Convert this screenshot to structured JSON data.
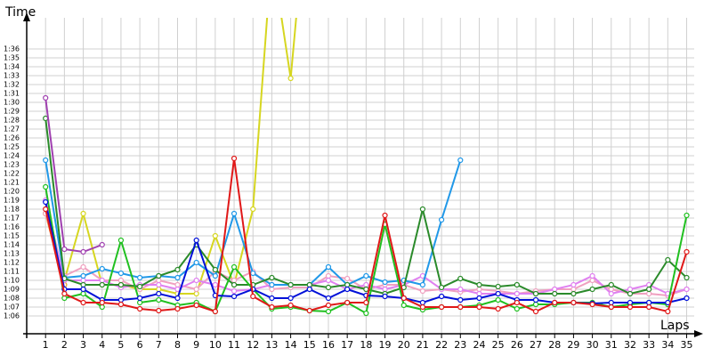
{
  "chart_data": {
    "type": "line",
    "ylabel": "Time",
    "xlabel": "Laps",
    "x": [
      1,
      2,
      3,
      4,
      5,
      6,
      7,
      8,
      9,
      10,
      11,
      12,
      13,
      14,
      15,
      16,
      17,
      18,
      19,
      20,
      21,
      22,
      23,
      24,
      25,
      26,
      27,
      28,
      29,
      30,
      31,
      32,
      33,
      34,
      35
    ],
    "xlim": [
      0,
      35.4
    ],
    "ylim": [
      64,
      99.5
    ],
    "yticks": [
      {
        "value": 66,
        "label": "1:06"
      },
      {
        "value": 67,
        "label": "1:07"
      },
      {
        "value": 68,
        "label": "1:08"
      },
      {
        "value": 69,
        "label": "1:09"
      },
      {
        "value": 70,
        "label": "1:10"
      },
      {
        "value": 71,
        "label": "1:11"
      },
      {
        "value": 72,
        "label": "1:12"
      },
      {
        "value": 73,
        "label": "1:13"
      },
      {
        "value": 74,
        "label": "1:14"
      },
      {
        "value": 75,
        "label": "1:15"
      },
      {
        "value": 76,
        "label": "1:16"
      },
      {
        "value": 77,
        "label": "1:17"
      },
      {
        "value": 78,
        "label": "1:18"
      },
      {
        "value": 79,
        "label": "1:19"
      },
      {
        "value": 80,
        "label": "1:20"
      },
      {
        "value": 81,
        "label": "1:21"
      },
      {
        "value": 82,
        "label": "1:22"
      },
      {
        "value": 83,
        "label": "1:23"
      },
      {
        "value": 84,
        "label": "1:24"
      },
      {
        "value": 85,
        "label": "1:25"
      },
      {
        "value": 86,
        "label": "1:26"
      },
      {
        "value": 87,
        "label": "1:27"
      },
      {
        "value": 88,
        "label": "1:28"
      },
      {
        "value": 89,
        "label": "1:29"
      },
      {
        "value": 90,
        "label": "1:30"
      },
      {
        "value": 91,
        "label": "1:31"
      },
      {
        "value": 92,
        "label": "1:32"
      },
      {
        "value": 93,
        "label": "1:33"
      },
      {
        "value": 94,
        "label": "1:34"
      },
      {
        "value": 95,
        "label": "1:35"
      },
      {
        "value": 96,
        "label": "1:36"
      }
    ],
    "grid": true,
    "series": [
      {
        "color": "#d6d620",
        "values": [
          77.5,
          70,
          77.5,
          69.5,
          69.5,
          69,
          69,
          68.5,
          68.5,
          75,
          69.5,
          78,
          106.7,
          92.7,
          116,
          null,
          null,
          null,
          null,
          null,
          null,
          null,
          null,
          null,
          null,
          null,
          null,
          null,
          null,
          null,
          null,
          null,
          null,
          null,
          null
        ]
      },
      {
        "color": "#f0a020",
        "values": [
          77.5,
          69.5,
          null,
          null,
          null,
          null,
          null,
          null,
          null,
          null,
          null,
          null,
          null,
          null,
          null,
          null,
          null,
          null,
          null,
          null,
          null,
          null,
          null,
          null,
          null,
          null,
          null,
          null,
          null,
          null,
          null,
          null,
          null,
          null,
          null
        ]
      },
      {
        "color": "#f0a0c0",
        "values": [
          77.5,
          70.5,
          71.5,
          70,
          70,
          69,
          70,
          69.5,
          69,
          71,
          70,
          71,
          69,
          69.2,
          69.2,
          70.5,
          70.2,
          69,
          69.5,
          69.5,
          68.8,
          69,
          68.7,
          69,
          68.8,
          68.5,
          68.8,
          69,
          69,
          70,
          69,
          68.5,
          68.5,
          68.3,
          69
        ]
      },
      {
        "color": "#e080f0",
        "values": [
          79,
          70,
          70,
          70,
          69.2,
          69.5,
          69.5,
          69,
          70,
          69.5,
          68.8,
          69,
          69.5,
          69.5,
          69.5,
          70,
          69,
          69.5,
          69,
          69.5,
          70.5,
          69,
          69,
          68.5,
          68.5,
          68.5,
          68.5,
          69,
          69.5,
          70.5,
          68.5,
          69,
          69.5,
          68.5,
          69
        ]
      },
      {
        "color": "#2098e8",
        "values": [
          83.5,
          70.3,
          70.5,
          71.3,
          70.8,
          70.3,
          70.5,
          70.3,
          72,
          70.5,
          77.5,
          70.8,
          69.5,
          69.5,
          69.5,
          71.5,
          69.5,
          70.5,
          69.8,
          70,
          69.5,
          76.8,
          83.5,
          null,
          null,
          null,
          null,
          null,
          null,
          null,
          null,
          null,
          null,
          null,
          null
        ]
      },
      {
        "color": "#2a8a2a",
        "values": [
          88.2,
          70.2,
          69.5,
          69.5,
          69.5,
          69.3,
          70.5,
          71.2,
          74,
          71.2,
          69.5,
          69.5,
          70.3,
          69.5,
          69.5,
          69.2,
          69.5,
          69,
          68.5,
          69.2,
          78,
          69.2,
          70.2,
          69.5,
          69.3,
          69.5,
          68.5,
          68.5,
          68.5,
          69,
          69.5,
          68.5,
          69,
          72.3,
          70.3
        ]
      },
      {
        "color": "#20c020",
        "values": [
          80.5,
          68,
          68.5,
          67,
          74.5,
          67.5,
          67.8,
          67.2,
          67.5,
          66.5,
          71.5,
          69,
          66.8,
          67,
          66.6,
          66.5,
          67.5,
          66.3,
          76.3,
          67.2,
          66.7,
          67,
          67,
          67.2,
          67.8,
          66.8,
          67.3,
          67.3,
          67.5,
          67.5,
          67,
          67.3,
          67.5,
          67.3,
          77.3
        ]
      },
      {
        "color": "#0010d8",
        "values": [
          78.8,
          69,
          69,
          67.8,
          67.8,
          68,
          68.5,
          68,
          74.5,
          68.3,
          68.2,
          69,
          68,
          68,
          69,
          68,
          69,
          68.3,
          68.2,
          68,
          67.5,
          68.2,
          67.8,
          68,
          68.5,
          67.8,
          67.8,
          67.5,
          67.5,
          67.4,
          67.5,
          67.5,
          67.5,
          67.5,
          68
        ]
      },
      {
        "color": "#e01818",
        "values": [
          78,
          68.5,
          67.5,
          67.5,
          67.3,
          66.8,
          66.6,
          66.8,
          67.2,
          66.5,
          83.7,
          68.2,
          67,
          67.2,
          66.6,
          67.2,
          67.5,
          67.5,
          77.3,
          68,
          67,
          67,
          67,
          67,
          66.8,
          67.5,
          66.5,
          67.5,
          67.5,
          67.3,
          67,
          67,
          67,
          66.5,
          73.2
        ]
      },
      {
        "color": "#a040b0",
        "values": [
          90.5,
          73.5,
          73.2,
          74,
          null,
          null,
          null,
          null,
          null,
          null,
          null,
          null,
          null,
          null,
          null,
          null,
          null,
          null,
          null,
          null,
          null,
          null,
          null,
          null,
          null,
          null,
          null,
          null,
          null,
          null,
          null,
          null,
          null,
          null,
          null
        ]
      }
    ]
  }
}
